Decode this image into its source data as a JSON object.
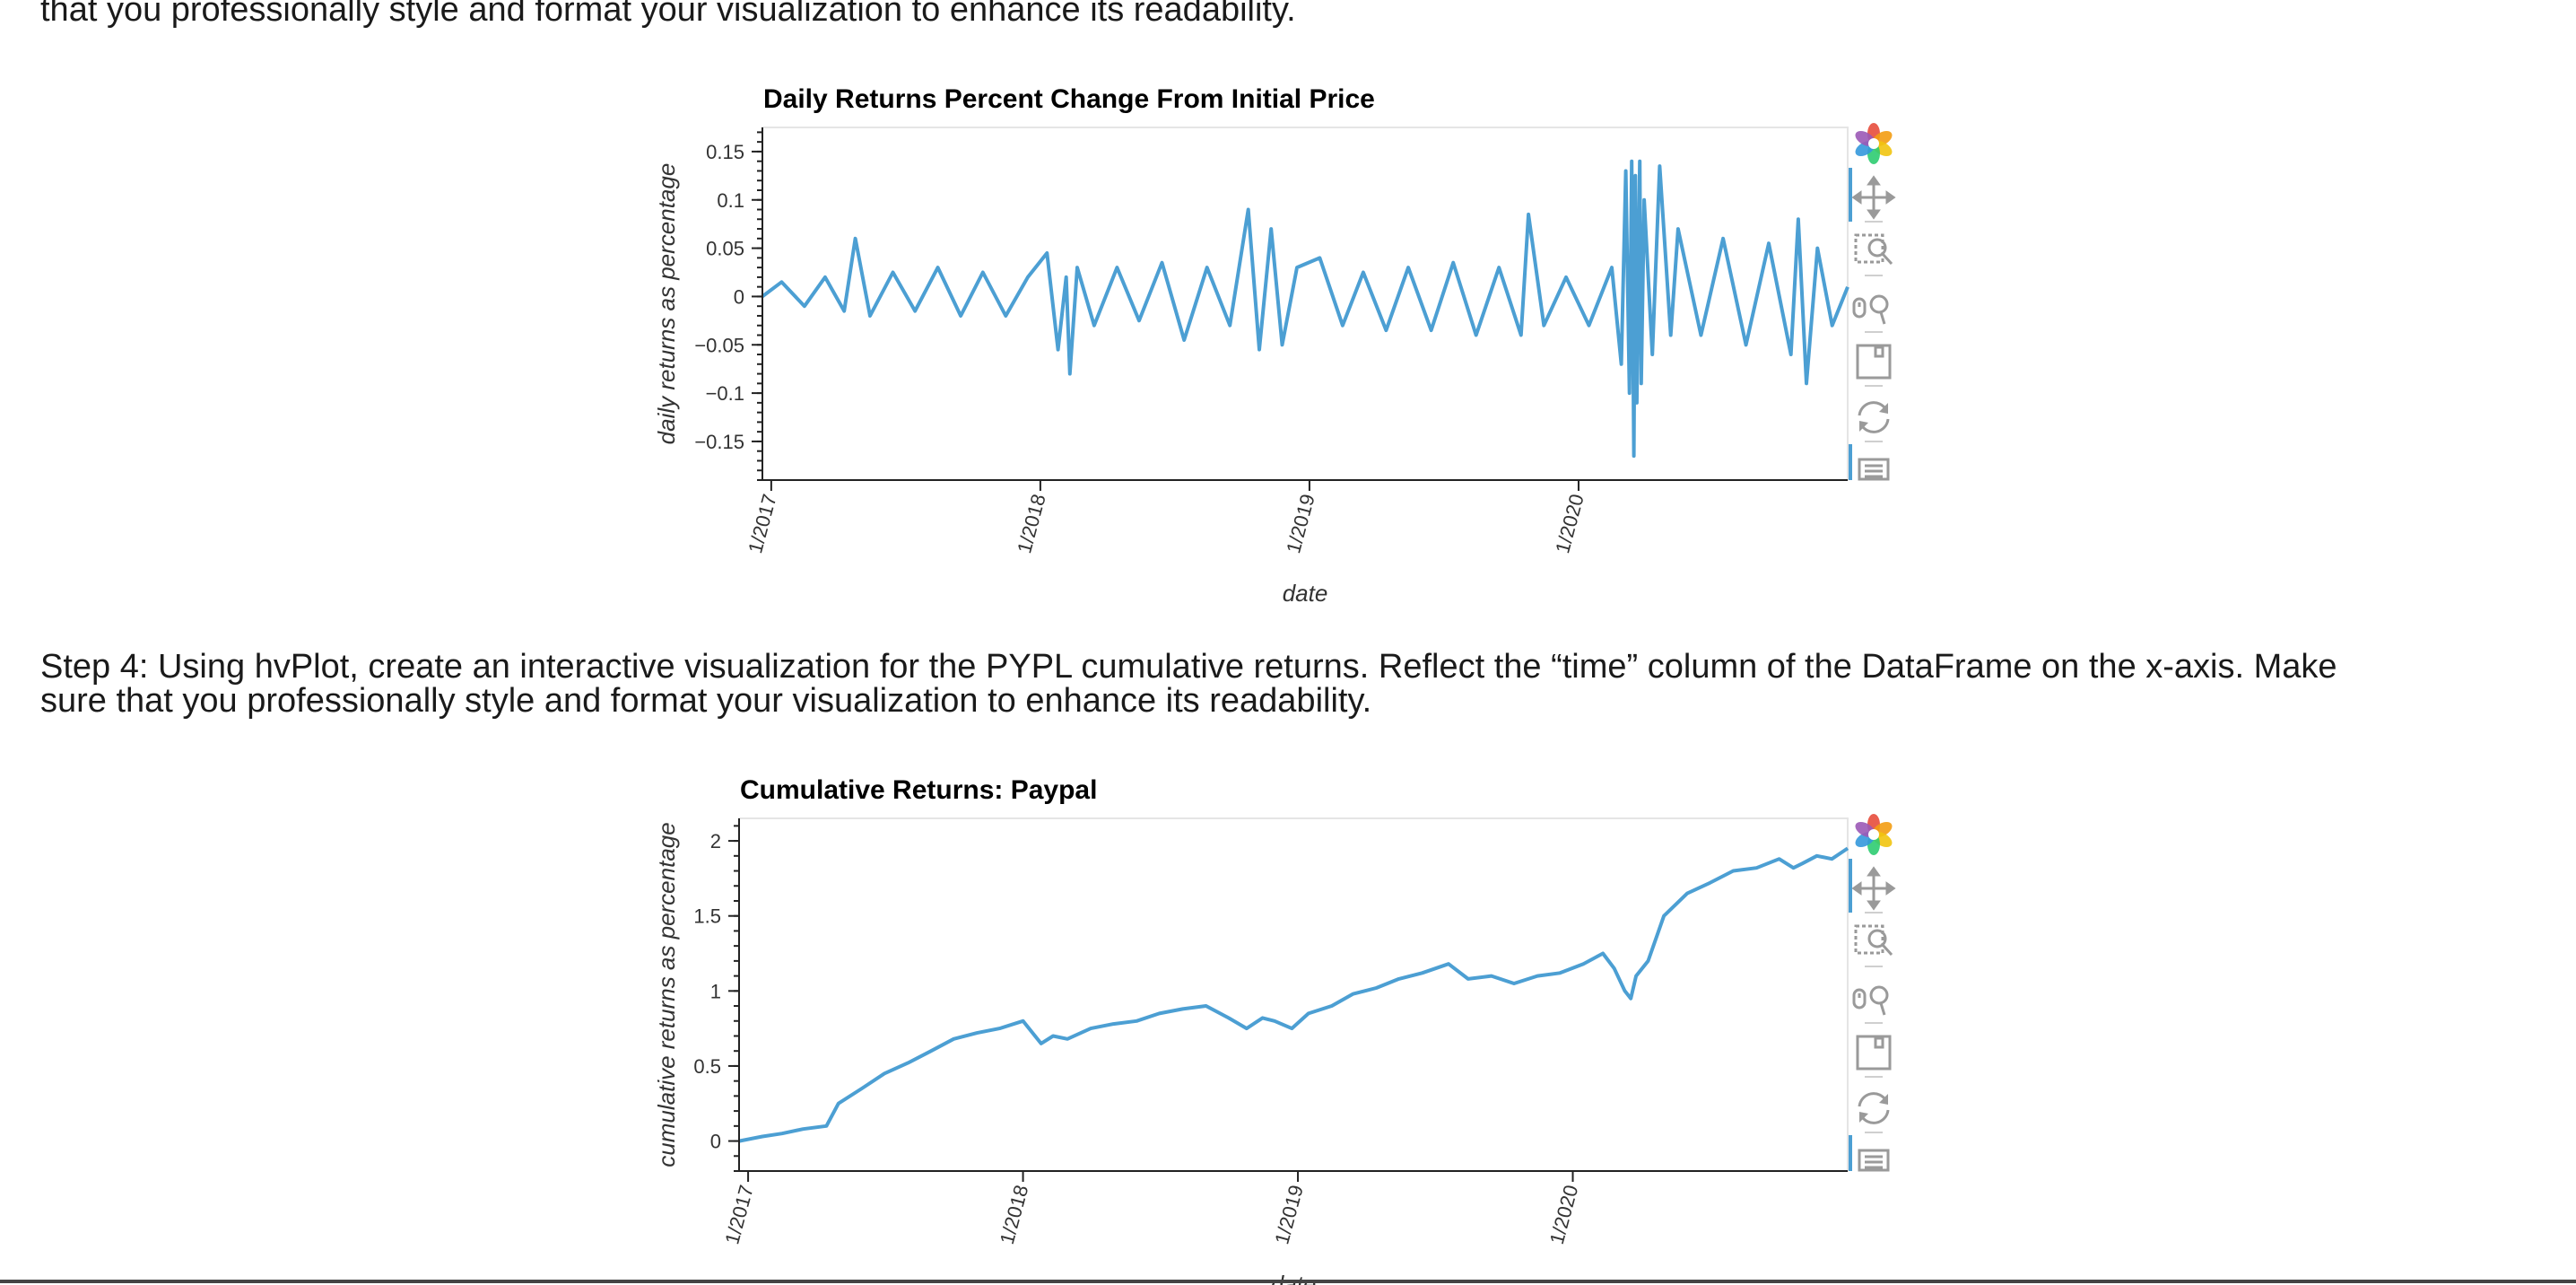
{
  "text": {
    "top_line": "that you professionally style and format your visualization to enhance its readability.",
    "step4_line1": "Step 4: Using hvPlot, create an interactive visualization for the PYPL cumulative returns. Reflect the “time” column of the DataFrame on the x-axis. Make",
    "step4_line2": "sure that you professionally style and format your visualization to enhance its readability."
  },
  "toolbar": {
    "tools": [
      {
        "name": "bokeh-logo-icon"
      },
      {
        "name": "pan-icon"
      },
      {
        "name": "box-zoom-icon"
      },
      {
        "name": "wheel-zoom-icon"
      },
      {
        "name": "save-icon"
      },
      {
        "name": "reset-icon"
      },
      {
        "name": "hover-icon"
      }
    ]
  },
  "colors": {
    "line": "#4c9fd3",
    "axis": "#222222",
    "frame": "#e5e5e5"
  },
  "chart_data": [
    {
      "type": "line",
      "title": "Daily Returns Percent Change From Initial Price",
      "xlabel": "date",
      "ylabel": "daily returns as percentage",
      "xlim": [
        "2016-12-20",
        "2020-12-31"
      ],
      "ylim": [
        -0.19,
        0.175
      ],
      "yticks": [
        -0.15,
        -0.1,
        -0.05,
        0,
        0.05,
        0.1,
        0.15
      ],
      "ytick_labels": [
        "−0.15",
        "−0.1",
        "−0.05",
        "0",
        "0.05",
        "0.1",
        "0.15"
      ],
      "xticks": [
        "2017-01-01",
        "2018-01-01",
        "2019-01-01",
        "2020-01-01"
      ],
      "xtick_labels": [
        "1/2017",
        "1/2018",
        "1/2019",
        "1/2020"
      ],
      "grid": false,
      "series": [
        {
          "x": [
            "2016-12-20",
            "2017-01-15",
            "2017-02-15",
            "2017-03-15",
            "2017-04-10",
            "2017-04-25",
            "2017-05-15",
            "2017-06-15",
            "2017-07-15",
            "2017-08-15",
            "2017-09-15",
            "2017-10-15",
            "2017-11-15",
            "2017-12-15",
            "2018-01-10",
            "2018-01-25",
            "2018-02-05",
            "2018-02-10",
            "2018-02-20",
            "2018-03-15",
            "2018-04-15",
            "2018-05-15",
            "2018-06-15",
            "2018-07-15",
            "2018-08-15",
            "2018-09-15",
            "2018-10-10",
            "2018-10-25",
            "2018-11-10",
            "2018-11-25",
            "2018-12-15",
            "2019-01-15",
            "2019-02-15",
            "2019-03-15",
            "2019-04-15",
            "2019-05-15",
            "2019-06-15",
            "2019-07-15",
            "2019-08-15",
            "2019-09-15",
            "2019-10-15",
            "2019-10-25",
            "2019-11-15",
            "2019-12-15",
            "2020-01-15",
            "2020-02-15",
            "2020-02-28",
            "2020-03-05",
            "2020-03-10",
            "2020-03-13",
            "2020-03-16",
            "2020-03-18",
            "2020-03-20",
            "2020-03-24",
            "2020-03-26",
            "2020-03-30",
            "2020-04-10",
            "2020-04-20",
            "2020-05-05",
            "2020-05-15",
            "2020-06-15",
            "2020-07-15",
            "2020-08-15",
            "2020-09-15",
            "2020-10-15",
            "2020-10-25",
            "2020-11-05",
            "2020-11-20",
            "2020-12-10",
            "2020-12-31"
          ],
          "values": [
            0.0,
            0.015,
            -0.01,
            0.02,
            -0.015,
            0.06,
            -0.02,
            0.025,
            -0.015,
            0.03,
            -0.02,
            0.025,
            -0.02,
            0.02,
            0.045,
            -0.055,
            0.02,
            -0.08,
            0.03,
            -0.03,
            0.03,
            -0.025,
            0.035,
            -0.045,
            0.03,
            -0.03,
            0.09,
            -0.055,
            0.07,
            -0.05,
            0.03,
            0.04,
            -0.03,
            0.025,
            -0.035,
            0.03,
            -0.035,
            0.035,
            -0.04,
            0.03,
            -0.04,
            0.085,
            -0.03,
            0.02,
            -0.03,
            0.03,
            -0.07,
            0.13,
            -0.1,
            0.14,
            -0.165,
            0.125,
            -0.11,
            0.14,
            -0.09,
            0.1,
            -0.06,
            0.135,
            -0.04,
            0.07,
            -0.04,
            0.06,
            -0.05,
            0.055,
            -0.06,
            0.08,
            -0.09,
            0.05,
            -0.03,
            0.01
          ]
        }
      ]
    },
    {
      "type": "line",
      "title": "Cumulative Returns: Paypal",
      "xlabel": "date",
      "ylabel": "cumulative returns as percentage",
      "xlim": [
        "2016-12-20",
        "2020-12-31"
      ],
      "ylim": [
        -0.2,
        2.15
      ],
      "yticks": [
        0,
        0.5,
        1,
        1.5,
        2
      ],
      "ytick_labels": [
        "0",
        "0.5",
        "1",
        "1.5",
        "2"
      ],
      "xticks": [
        "2017-01-01",
        "2018-01-01",
        "2019-01-01",
        "2020-01-01"
      ],
      "xtick_labels": [
        "1/2017",
        "1/2018",
        "1/2019",
        "1/2020"
      ],
      "grid": false,
      "series": [
        {
          "x": [
            "2016-12-20",
            "2017-01-20",
            "2017-02-15",
            "2017-03-15",
            "2017-04-15",
            "2017-05-01",
            "2017-06-01",
            "2017-07-01",
            "2017-08-01",
            "2017-09-01",
            "2017-10-01",
            "2017-11-01",
            "2017-12-01",
            "2018-01-01",
            "2018-01-25",
            "2018-02-10",
            "2018-03-01",
            "2018-04-01",
            "2018-05-01",
            "2018-06-01",
            "2018-07-01",
            "2018-08-01",
            "2018-09-01",
            "2018-10-01",
            "2018-10-25",
            "2018-11-15",
            "2018-12-01",
            "2018-12-24",
            "2019-01-15",
            "2019-02-15",
            "2019-03-15",
            "2019-04-15",
            "2019-05-15",
            "2019-06-15",
            "2019-07-20",
            "2019-08-15",
            "2019-09-15",
            "2019-10-15",
            "2019-11-15",
            "2019-12-15",
            "2020-01-15",
            "2020-02-10",
            "2020-02-25",
            "2020-03-10",
            "2020-03-18",
            "2020-03-25",
            "2020-04-10",
            "2020-05-01",
            "2020-06-01",
            "2020-07-01",
            "2020-08-01",
            "2020-09-01",
            "2020-10-01",
            "2020-10-20",
            "2020-11-01",
            "2020-11-20",
            "2020-12-10",
            "2020-12-31"
          ],
          "values": [
            0.0,
            0.03,
            0.05,
            0.08,
            0.1,
            0.25,
            0.35,
            0.45,
            0.52,
            0.6,
            0.68,
            0.72,
            0.75,
            0.8,
            0.65,
            0.7,
            0.68,
            0.75,
            0.78,
            0.8,
            0.85,
            0.88,
            0.9,
            0.82,
            0.75,
            0.82,
            0.8,
            0.75,
            0.85,
            0.9,
            0.98,
            1.02,
            1.08,
            1.12,
            1.18,
            1.08,
            1.1,
            1.05,
            1.1,
            1.12,
            1.18,
            1.25,
            1.15,
            1.0,
            0.95,
            1.1,
            1.2,
            1.5,
            1.65,
            1.72,
            1.8,
            1.82,
            1.88,
            1.82,
            1.85,
            1.9,
            1.88,
            1.95
          ]
        }
      ]
    }
  ]
}
